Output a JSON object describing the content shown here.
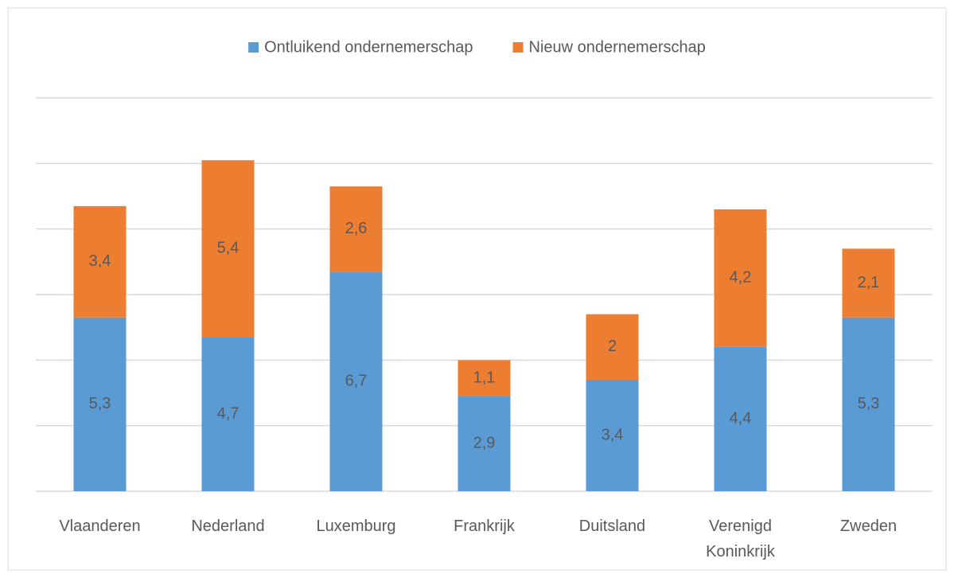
{
  "chart_data": {
    "type": "stacked_bar",
    "categories": [
      "Vlaanderen",
      "Nederland",
      "Luxemburg",
      "Frankrijk",
      "Duitsland",
      "Verenigd Koninkrijk",
      "Zweden"
    ],
    "series": [
      {
        "name": "Ontluikend ondernemerschap",
        "color": "#5b9bd5",
        "values": [
          5.3,
          4.7,
          6.7,
          2.9,
          3.4,
          4.4,
          5.3
        ],
        "value_labels": [
          "5,3",
          "4,7",
          "6,7",
          "2,9",
          "3,4",
          "4,4",
          "5,3"
        ]
      },
      {
        "name": "Nieuw ondernemerschap",
        "color": "#ed7d31",
        "values": [
          3.4,
          5.4,
          2.6,
          1.1,
          2,
          4.2,
          2.1
        ],
        "value_labels": [
          "3,4",
          "5,4",
          "2,6",
          "1,1",
          "2",
          "4,2",
          "2,1"
        ]
      }
    ],
    "ylim": [
      0,
      12
    ],
    "yticks": [
      0,
      2,
      4,
      6,
      8,
      10,
      12
    ],
    "grid": true,
    "legend": "top"
  }
}
